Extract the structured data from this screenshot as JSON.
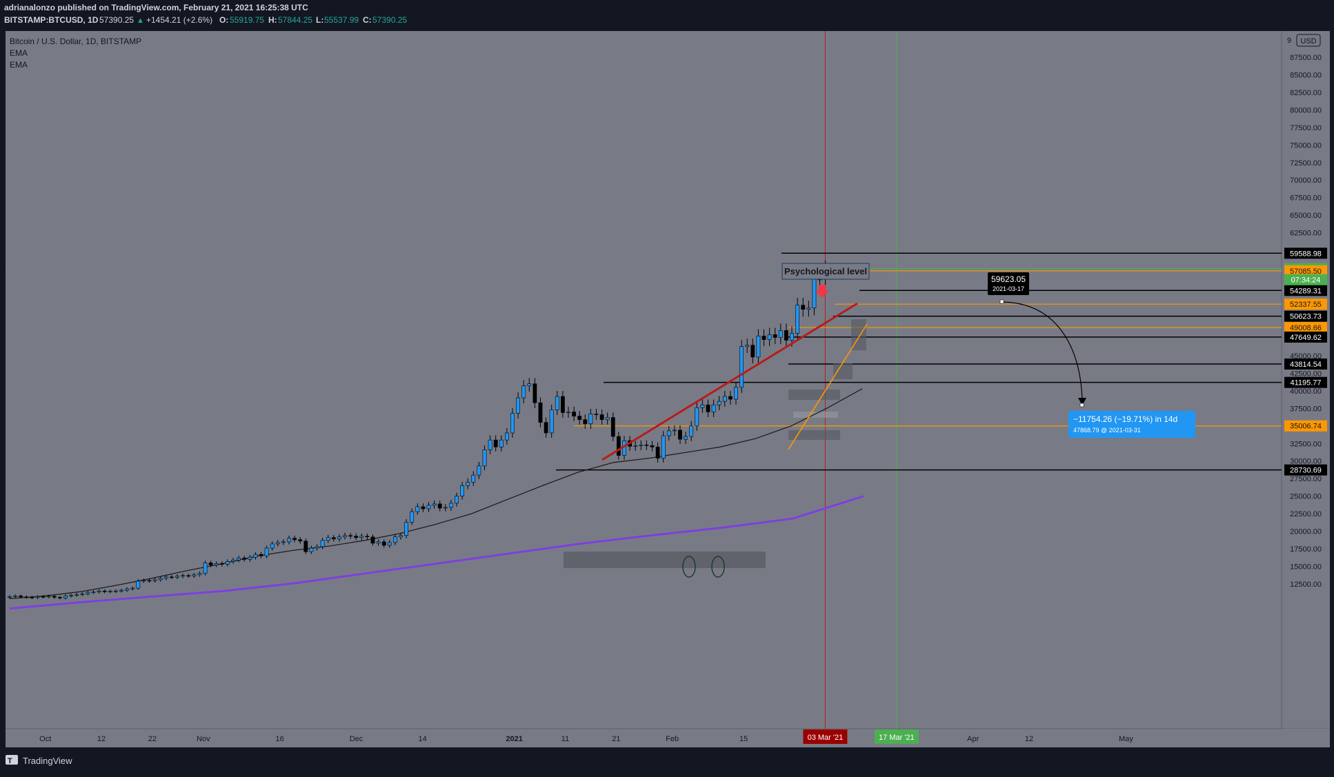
{
  "header": {
    "line1": "adrianalonzo published on TradingView.com, February 21, 2021 16:25:38 UTC",
    "symbol": "BITSTAMP:BTCUSD, 1D",
    "last": "57390.25",
    "change": "+1454.21 (+2.6%)",
    "o_label": "O:",
    "o": "55919.75",
    "h_label": "H:",
    "h": "57844.25",
    "l_label": "L:",
    "l": "55537.99",
    "c_label": "C:",
    "c": "57390.25"
  },
  "legend": {
    "title": "Bitcoin / U.S. Dollar, 1D, BITSTAMP",
    "ind1": "EMA",
    "ind2": "EMA"
  },
  "currency_button": "USD",
  "footer": {
    "brand": "TradingView"
  },
  "colors": {
    "background": "#787b86",
    "frame": "#131722",
    "up": "#2196f3",
    "down": "#000000",
    "ema_short": "#1e1e1e",
    "ema_long": "#7e3fe0",
    "resistance_line": "#b71c1c",
    "orange": "#ff9800",
    "green_tag": "#4caf50",
    "red_tag": "#9a0000",
    "measure_tag": "#2196f3"
  },
  "chart_data": {
    "type": "candlestick",
    "title": "Bitcoin / U.S. Dollar, 1D, BITSTAMP",
    "symbol": "BITSTAMP:BTCUSD",
    "timeframe": "1D",
    "ylim": [
      10000,
      90000
    ],
    "xlim": [
      "2020-09-24",
      "2021-05-12"
    ],
    "grid": false,
    "y_tick_labels": [
      "87500.00",
      "85000.00",
      "82500.00",
      "80000.00",
      "77500.00",
      "75000.00",
      "72500.00",
      "70000.00",
      "67500.00",
      "65000.00",
      "62500.00",
      "45000.00",
      "42500.00",
      "40000.00",
      "37500.00",
      "32500.00",
      "30000.00",
      "27500.00",
      "25000.00",
      "22500.00",
      "20000.00",
      "17500.00",
      "15000.00",
      "12500.00"
    ],
    "y_tick_values": [
      87500,
      85000,
      82500,
      80000,
      77500,
      75000,
      72500,
      70000,
      67500,
      65000,
      62500,
      45000,
      42500,
      40000,
      37500,
      32500,
      30000,
      27500,
      25000,
      22500,
      20000,
      17500,
      15000,
      12500
    ],
    "x_tick_labels": [
      "Oct",
      "12",
      "22",
      "Nov",
      "16",
      "Dec",
      "14",
      "2021",
      "11",
      "21",
      "Feb",
      "15",
      "Apr",
      "12",
      "May"
    ],
    "x_tick_dates": [
      "2020-10-01",
      "2020-10-12",
      "2020-10-22",
      "2020-11-01",
      "2020-11-16",
      "2020-12-01",
      "2020-12-14",
      "2021-01-01",
      "2021-01-11",
      "2021-01-21",
      "2021-02-01",
      "2021-02-15",
      "2021-04-01",
      "2021-04-12",
      "2021-05-01"
    ],
    "candles_close": [
      10700,
      10800,
      10650,
      10600,
      10550,
      10700,
      10680,
      10750,
      10600,
      10500,
      10800,
      10900,
      11000,
      11100,
      11300,
      11350,
      11500,
      11400,
      11450,
      11500,
      11600,
      11800,
      11900,
      12900,
      13000,
      12950,
      13100,
      13300,
      13500,
      13450,
      13600,
      13700,
      13650,
      13800,
      14000,
      15500,
      15200,
      15400,
      15300,
      15700,
      15900,
      16200,
      16000,
      16300,
      16700,
      16500,
      17600,
      18200,
      18400,
      18500,
      19000,
      18800,
      18600,
      17100,
      17600,
      17800,
      18700,
      19100,
      18900,
      19200,
      19400,
      19300,
      19100,
      19300,
      19200,
      18300,
      18500,
      18000,
      18400,
      19200,
      19400,
      21300,
      22800,
      23500,
      23200,
      23700,
      23900,
      23300,
      23400,
      24000,
      25000,
      26500,
      27000,
      28000,
      29300,
      31600,
      33000,
      32000,
      33000,
      34000,
      36800,
      39000,
      40700,
      41000,
      38300,
      35500,
      34000,
      37300,
      39200,
      36900,
      37000,
      36400,
      35900,
      35300,
      36700,
      36600,
      35900,
      36200,
      33500,
      30800,
      32900,
      32100,
      32200,
      32300,
      32200,
      32000,
      30400,
      33600,
      34300,
      34400,
      33100,
      33500,
      35000,
      37600,
      38000,
      37000,
      38000,
      38500,
      39200,
      38800,
      40500,
      46300,
      46500,
      44800,
      47800,
      47300,
      48000,
      47600,
      48600,
      47200,
      48200,
      52200,
      51600,
      51800,
      55900,
      55900,
      57400
    ],
    "ema_short": [
      10400,
      10800,
      11400,
      12300,
      13300,
      14400,
      15400,
      16500,
      17300,
      17900,
      18700,
      19700,
      21000,
      22500,
      24500,
      26500,
      28400,
      29800,
      30400,
      31200,
      32000,
      33200,
      35000,
      37500,
      40300
    ],
    "ema_long": [
      9000,
      9900,
      10700,
      11500,
      12600,
      14000,
      15400,
      16800,
      18200,
      19400,
      20500,
      21800,
      25000
    ],
    "horizontal_levels": [
      {
        "price": 59588.98,
        "label": "59588.98",
        "color": "#000000"
      },
      {
        "price": 57390.25,
        "label": "57390.25",
        "color": "#4caf50"
      },
      {
        "price": 57085.5,
        "label": "57085.50",
        "color": "#ff9800"
      },
      {
        "price": 54289.31,
        "label": "54289.31",
        "color": "#000000"
      },
      {
        "price": 52337.55,
        "label": "52337.55",
        "color": "#ff9800"
      },
      {
        "price": 50623.73,
        "label": "50623.73",
        "color": "#000000"
      },
      {
        "price": 49008.66,
        "label": "49008.66",
        "color": "#ff9800"
      },
      {
        "price": 47649.62,
        "label": "47649.62",
        "color": "#000000"
      },
      {
        "price": 43814.54,
        "label": "43814.54",
        "color": "#000000"
      },
      {
        "price": 41195.77,
        "label": "41195.77",
        "color": "#000000"
      },
      {
        "price": 35006.74,
        "label": "35006.74",
        "color": "#ff9800"
      },
      {
        "price": 28730.69,
        "label": "28730.69",
        "color": "#000000"
      }
    ],
    "countdown": "07:34:24",
    "vertical_lines": [
      {
        "date": "2021-03-03",
        "label": "03 Mar '21",
        "color": "#b71c1c"
      },
      {
        "date": "2021-03-17",
        "label": "17 Mar '21",
        "color": "#4caf50"
      }
    ],
    "annotations": {
      "psychological_level": "Psychological level",
      "target_price": "59623.05",
      "target_date": "2021-03-17",
      "measure_main": "−11754.26 (−19.71%) in 14d",
      "measure_sub": "47868.79 @ 2021-03-31"
    }
  }
}
